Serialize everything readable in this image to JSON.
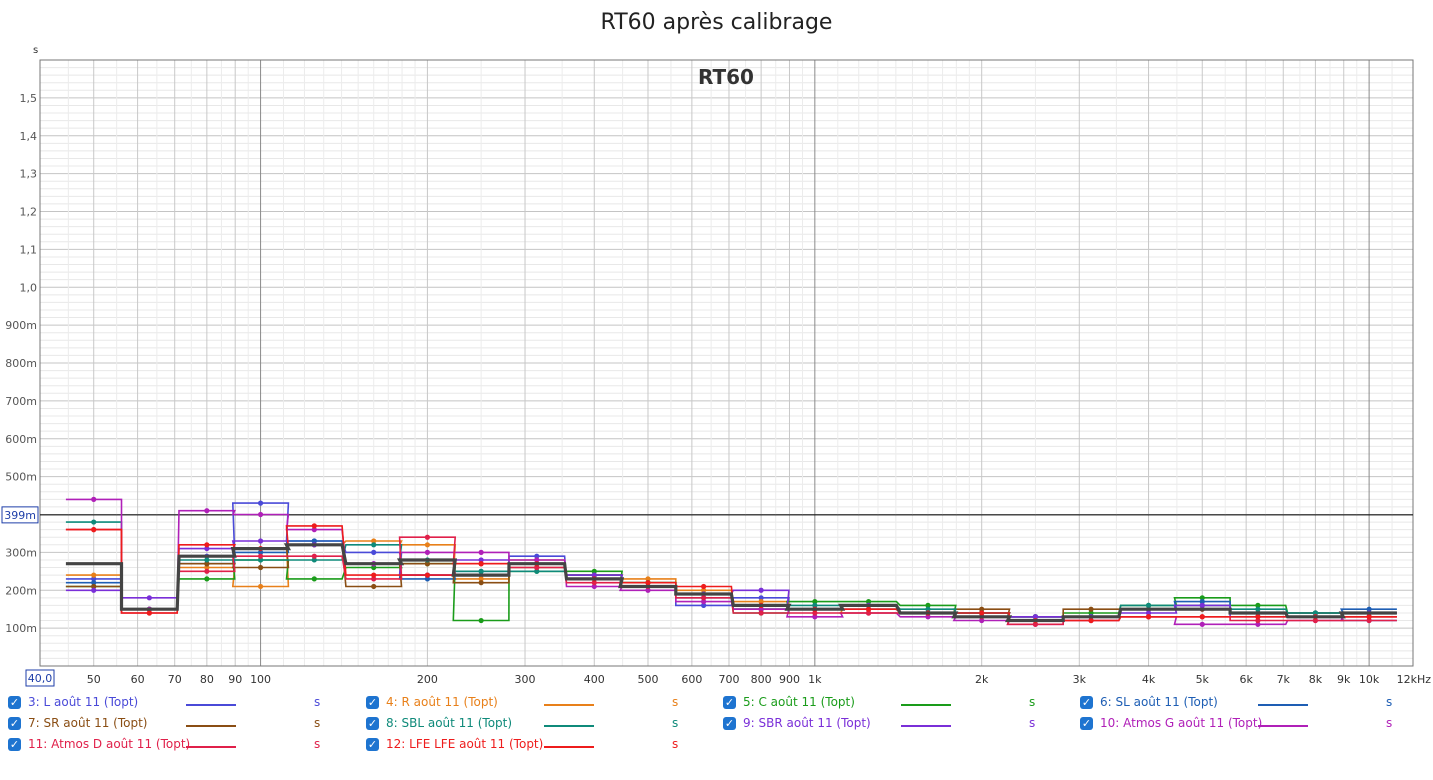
{
  "window": {
    "title": "RT60 après calibrage"
  },
  "chart_data": {
    "type": "line",
    "title": "RT60 après calibrage",
    "subtitle": "RT60",
    "y_unit_label": "s",
    "x_scale": "log",
    "xlim": [
      40,
      12000
    ],
    "ylim": [
      0,
      1.6
    ],
    "x_start_label": "40,0",
    "cursor": {
      "value": 0.399,
      "label": "399m"
    },
    "x_ticks": [
      {
        "v": 50,
        "label": "50"
      },
      {
        "v": 60,
        "label": "60"
      },
      {
        "v": 70,
        "label": "70"
      },
      {
        "v": 80,
        "label": "80"
      },
      {
        "v": 90,
        "label": "90"
      },
      {
        "v": 100,
        "label": "100"
      },
      {
        "v": 200,
        "label": "200"
      },
      {
        "v": 300,
        "label": "300"
      },
      {
        "v": 400,
        "label": "400"
      },
      {
        "v": 500,
        "label": "500"
      },
      {
        "v": 600,
        "label": "600"
      },
      {
        "v": 700,
        "label": "700"
      },
      {
        "v": 800,
        "label": "800"
      },
      {
        "v": 900,
        "label": "900"
      },
      {
        "v": 1000,
        "label": "1k"
      },
      {
        "v": 2000,
        "label": "2k"
      },
      {
        "v": 3000,
        "label": "3k"
      },
      {
        "v": 4000,
        "label": "4k"
      },
      {
        "v": 5000,
        "label": "5k"
      },
      {
        "v": 6000,
        "label": "6k"
      },
      {
        "v": 7000,
        "label": "7k"
      },
      {
        "v": 8000,
        "label": "8k"
      },
      {
        "v": 9000,
        "label": "9k"
      },
      {
        "v": 10000,
        "label": "10k"
      },
      {
        "v": 12000,
        "label": "12kHz"
      }
    ],
    "y_ticks": [
      {
        "v": 0.1,
        "label": "100m"
      },
      {
        "v": 0.2,
        "label": "200m"
      },
      {
        "v": 0.3,
        "label": "300m"
      },
      {
        "v": 0.5,
        "label": "500m"
      },
      {
        "v": 0.6,
        "label": "600m"
      },
      {
        "v": 0.7,
        "label": "700m"
      },
      {
        "v": 0.8,
        "label": "800m"
      },
      {
        "v": 0.9,
        "label": "900m"
      },
      {
        "v": 1.0,
        "label": "1,0"
      },
      {
        "v": 1.1,
        "label": "1,1"
      },
      {
        "v": 1.2,
        "label": "1,2"
      },
      {
        "v": 1.3,
        "label": "1,3"
      },
      {
        "v": 1.4,
        "label": "1,4"
      },
      {
        "v": 1.5,
        "label": "1,5"
      }
    ],
    "x": [
      50,
      63,
      80,
      100,
      125,
      160,
      200,
      250,
      315,
      400,
      500,
      630,
      800,
      1000,
      1250,
      1600,
      2000,
      2500,
      3150,
      4000,
      5000,
      6300,
      8000,
      10000
    ],
    "series": [
      {
        "name": "3: L août 11 (Topt)",
        "color": "#4a4ad8",
        "values": [
          0.23,
          0.15,
          0.29,
          0.43,
          0.33,
          0.3,
          0.24,
          0.24,
          0.29,
          0.23,
          0.21,
          0.16,
          0.18,
          0.15,
          0.15,
          0.14,
          0.13,
          0.13,
          0.13,
          0.15,
          0.15,
          0.14,
          0.14,
          0.12
        ]
      },
      {
        "name": "4: R août 11 (Topt)",
        "color": "#e8801a",
        "values": [
          0.24,
          0.15,
          0.26,
          0.21,
          0.32,
          0.33,
          0.32,
          0.23,
          0.28,
          0.24,
          0.23,
          0.2,
          0.17,
          0.15,
          0.14,
          0.14,
          0.13,
          0.12,
          0.13,
          0.15,
          0.16,
          0.14,
          0.13,
          0.13
        ]
      },
      {
        "name": "5: C août 11 (Topt)",
        "color": "#1a9c1a",
        "values": [
          0.21,
          0.15,
          0.23,
          0.28,
          0.23,
          0.26,
          0.27,
          0.12,
          0.25,
          0.25,
          0.22,
          0.19,
          0.14,
          0.17,
          0.17,
          0.16,
          0.14,
          0.13,
          0.14,
          0.16,
          0.18,
          0.16,
          0.14,
          0.14
        ]
      },
      {
        "name": "6: SL août 11 (Topt)",
        "color": "#1e5eb4",
        "values": [
          0.22,
          0.15,
          0.27,
          0.3,
          0.33,
          0.27,
          0.23,
          0.25,
          0.27,
          0.23,
          0.21,
          0.18,
          0.15,
          0.15,
          0.16,
          0.14,
          0.14,
          0.13,
          0.13,
          0.15,
          0.17,
          0.14,
          0.14,
          0.15
        ]
      },
      {
        "name": "7: SR août 11 (Topt)",
        "color": "#8a4e14",
        "values": [
          0.21,
          0.15,
          0.27,
          0.26,
          0.32,
          0.21,
          0.27,
          0.22,
          0.26,
          0.24,
          0.22,
          0.19,
          0.15,
          0.15,
          0.15,
          0.14,
          0.15,
          0.13,
          0.15,
          0.15,
          0.15,
          0.14,
          0.14,
          0.14
        ]
      },
      {
        "name": "8: SBL août 11 (Topt)",
        "color": "#0f8a7a",
        "values": [
          0.38,
          0.15,
          0.28,
          0.28,
          0.28,
          0.32,
          0.28,
          0.25,
          0.25,
          0.24,
          0.22,
          0.19,
          0.15,
          0.16,
          0.16,
          0.15,
          0.14,
          0.13,
          0.13,
          0.16,
          0.16,
          0.15,
          0.14,
          0.14
        ]
      },
      {
        "name": "9: SBR août 11 (Topt)",
        "color": "#7a2fd8",
        "values": [
          0.2,
          0.18,
          0.31,
          0.33,
          0.32,
          0.27,
          0.24,
          0.28,
          0.27,
          0.24,
          0.21,
          0.19,
          0.2,
          0.15,
          0.16,
          0.14,
          0.13,
          0.13,
          0.13,
          0.14,
          0.16,
          0.13,
          0.13,
          0.14
        ]
      },
      {
        "name": "10: Atmos G août 11 (Topt)",
        "color": "#b020b8",
        "values": [
          0.44,
          0.15,
          0.41,
          0.4,
          0.36,
          0.27,
          0.3,
          0.3,
          0.28,
          0.21,
          0.2,
          0.17,
          0.15,
          0.13,
          0.14,
          0.13,
          0.12,
          0.11,
          0.12,
          0.13,
          0.11,
          0.11,
          0.12,
          0.13
        ]
      },
      {
        "name": "11: Atmos D août 11 (Topt)",
        "color": "#e0204a",
        "values": [
          0.36,
          0.14,
          0.25,
          0.29,
          0.29,
          0.23,
          0.34,
          0.27,
          0.26,
          0.22,
          0.21,
          0.18,
          0.14,
          0.14,
          0.14,
          0.14,
          0.13,
          0.11,
          0.12,
          0.13,
          0.13,
          0.12,
          0.12,
          0.12
        ]
      },
      {
        "name": "12: LFE LFE août 11 (Topt)",
        "color": "#ee1c1c",
        "values": [
          0.36,
          0.14,
          0.32,
          0.31,
          0.37,
          0.24,
          0.24,
          0.27,
          0.27,
          0.23,
          0.22,
          0.21,
          0.16,
          0.15,
          0.15,
          0.14,
          0.14,
          0.12,
          0.12,
          0.13,
          0.13,
          0.13,
          0.13,
          0.13
        ]
      }
    ],
    "average": {
      "color": "#444444",
      "values": [
        0.27,
        0.15,
        0.29,
        0.31,
        0.32,
        0.27,
        0.28,
        0.24,
        0.27,
        0.23,
        0.21,
        0.19,
        0.16,
        0.15,
        0.16,
        0.14,
        0.13,
        0.12,
        0.13,
        0.15,
        0.15,
        0.14,
        0.13,
        0.14
      ]
    }
  },
  "legend": {
    "unit": "s"
  }
}
